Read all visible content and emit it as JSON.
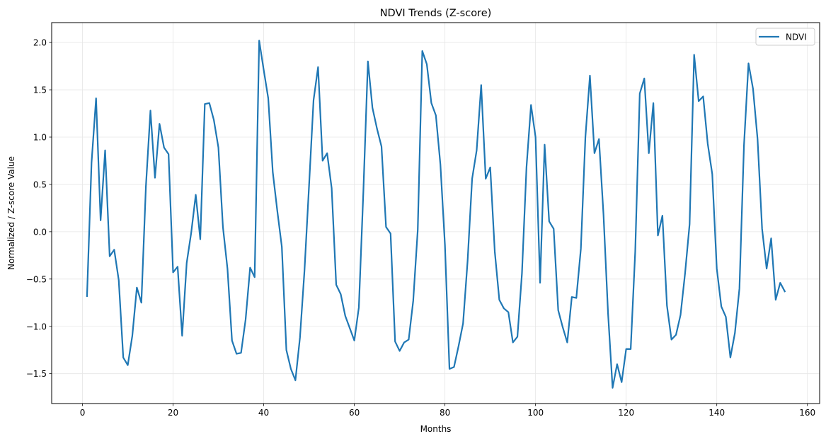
{
  "chart_data": {
    "type": "line",
    "title": "NDVI Trends (Z-score)",
    "xlabel": "Months",
    "ylabel": "Normalized / Z-score Value",
    "xlim": [
      -6.8,
      162.7
    ],
    "ylim": [
      -1.816,
      2.21
    ],
    "xticks": [
      0,
      20,
      40,
      60,
      80,
      100,
      120,
      140,
      160
    ],
    "xtick_labels": [
      "0",
      "20",
      "40",
      "60",
      "80",
      "100",
      "120",
      "140",
      "160"
    ],
    "yticks": [
      -1.5,
      -1.0,
      -0.5,
      0.0,
      0.5,
      1.0,
      1.5,
      2.0
    ],
    "ytick_labels": [
      "−1.5",
      "−1.0",
      "−0.5",
      "0.0",
      "0.5",
      "1.0",
      "1.5",
      "2.0"
    ],
    "grid": true,
    "legend_position": "upper right",
    "series": [
      {
        "name": "NDVI",
        "color": "#1f77b4",
        "x_start": 1,
        "x_step": 1,
        "values": [
          -0.68,
          0.73,
          1.41,
          0.12,
          0.86,
          -0.26,
          -0.19,
          -0.51,
          -1.33,
          -1.41,
          -1.1,
          -0.59,
          -0.75,
          0.48,
          1.28,
          0.57,
          1.14,
          0.89,
          0.82,
          -0.43,
          -0.37,
          -1.1,
          -0.33,
          -0.01,
          0.39,
          -0.08,
          1.35,
          1.36,
          1.18,
          0.89,
          0.05,
          -0.39,
          -1.15,
          -1.29,
          -1.28,
          -0.93,
          -0.38,
          -0.48,
          2.02,
          1.71,
          1.41,
          0.63,
          0.22,
          -0.16,
          -1.25,
          -1.45,
          -1.57,
          -1.12,
          -0.41,
          0.48,
          1.39,
          1.74,
          0.75,
          0.83,
          0.46,
          -0.56,
          -0.66,
          -0.89,
          -1.02,
          -1.15,
          -0.8,
          0.43,
          1.8,
          1.31,
          1.09,
          0.9,
          0.05,
          -0.02,
          -1.16,
          -1.26,
          -1.17,
          -1.14,
          -0.73,
          0.02,
          1.91,
          1.77,
          1.36,
          1.23,
          0.71,
          -0.14,
          -1.45,
          -1.43,
          -1.21,
          -0.97,
          -0.31,
          0.56,
          0.86,
          1.55,
          0.56,
          0.68,
          -0.21,
          -0.72,
          -0.81,
          -0.85,
          -1.17,
          -1.11,
          -0.44,
          0.68,
          1.34,
          1.0,
          -0.54,
          0.92,
          0.11,
          0.03,
          -0.83,
          -1.01,
          -1.17,
          -0.69,
          -0.7,
          -0.18,
          1.0,
          1.65,
          0.83,
          0.98,
          0.18,
          -0.86,
          -1.65,
          -1.4,
          -1.59,
          -1.24,
          -1.24,
          -0.21,
          1.46,
          1.62,
          0.83,
          1.36,
          -0.04,
          0.17,
          -0.78,
          -1.14,
          -1.09,
          -0.88,
          -0.44,
          0.08,
          1.87,
          1.38,
          1.43,
          0.93,
          0.61,
          -0.39,
          -0.79,
          -0.9,
          -1.33,
          -1.07,
          -0.6,
          0.91,
          1.78,
          1.51,
          0.98,
          0.03,
          -0.39,
          -0.07,
          -0.72,
          -0.54,
          -0.63
        ]
      }
    ]
  },
  "legend": {
    "items": [
      {
        "label": "NDVI",
        "color": "#1f77b4"
      }
    ]
  },
  "style": {
    "grid_color": "#e6e6e6",
    "axis_color": "#000000",
    "background": "#ffffff"
  }
}
